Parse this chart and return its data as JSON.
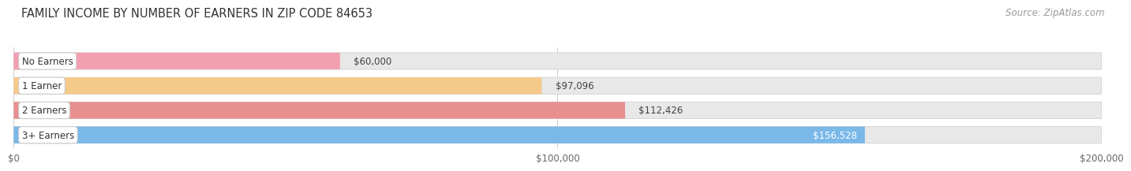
{
  "title": "FAMILY INCOME BY NUMBER OF EARNERS IN ZIP CODE 84653",
  "source": "Source: ZipAtlas.com",
  "categories": [
    "No Earners",
    "1 Earner",
    "2 Earners",
    "3+ Earners"
  ],
  "values": [
    60000,
    97096,
    112426,
    156528
  ],
  "labels": [
    "$60,000",
    "$97,096",
    "$112,426",
    "$156,528"
  ],
  "bar_colors": [
    "#f2a0b0",
    "#f5c98a",
    "#e89090",
    "#7ab8e8"
  ],
  "bar_bg_color": "#e8e8e8",
  "label_colors": [
    "#555555",
    "#555555",
    "#555555",
    "#ffffff"
  ],
  "xlim": [
    0,
    200000
  ],
  "xticks": [
    0,
    100000,
    200000
  ],
  "xticklabels": [
    "$0",
    "$100,000",
    "$200,000"
  ],
  "bg_color": "#ffffff",
  "title_fontsize": 10.5,
  "source_fontsize": 8.5,
  "label_fontsize": 8.5,
  "category_fontsize": 8.5,
  "tick_fontsize": 8.5,
  "bar_height": 0.68,
  "bar_gap": 0.32
}
